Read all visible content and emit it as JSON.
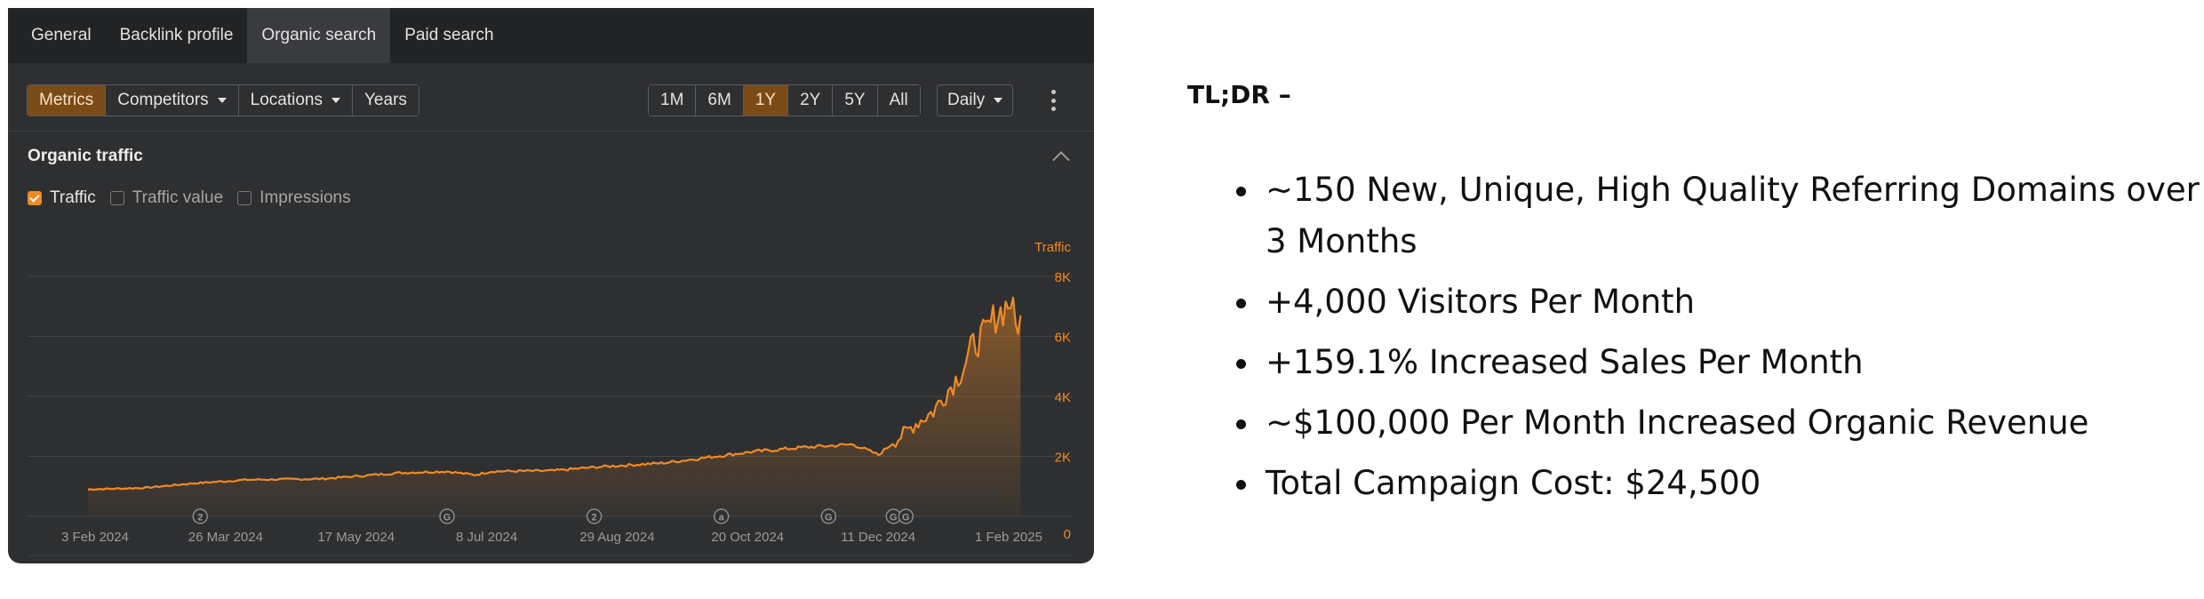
{
  "tabs": [
    "General",
    "Backlink profile",
    "Organic search",
    "Paid search"
  ],
  "toolbar": {
    "left_group": [
      {
        "label": "Metrics",
        "active": true,
        "caret": false
      },
      {
        "label": "Competitors",
        "active": false,
        "caret": true
      },
      {
        "label": "Locations",
        "active": false,
        "caret": true
      },
      {
        "label": "Years",
        "active": false,
        "caret": false
      }
    ],
    "ranges": [
      {
        "label": "1M",
        "active": false
      },
      {
        "label": "6M",
        "active": false
      },
      {
        "label": "1Y",
        "active": true
      },
      {
        "label": "2Y",
        "active": false
      },
      {
        "label": "5Y",
        "active": false
      },
      {
        "label": "All",
        "active": false
      }
    ],
    "interval": "Daily"
  },
  "section": {
    "title": "Organic traffic",
    "checkboxes": [
      {
        "label": "Traffic",
        "checked": true
      },
      {
        "label": "Traffic value",
        "checked": false
      },
      {
        "label": "Impressions",
        "checked": false
      }
    ]
  },
  "chart_data": {
    "type": "area",
    "series": [
      {
        "name": "Traffic",
        "color": "#f08a24"
      }
    ],
    "axis_title": "Traffic",
    "y_ticks": [
      "8K",
      "6K",
      "4K",
      "2K",
      "0"
    ],
    "ylim": [
      0,
      8000
    ],
    "x_tick_labels": [
      "3 Feb 2024",
      "26 Mar 2024",
      "17 May 2024",
      "8 Jul 2024",
      "29 Aug 2024",
      "20 Oct 2024",
      "11 Dec 2024",
      "1 Feb 2025"
    ],
    "x_start": "2024-01-28",
    "x_end": "2025-02-07",
    "points": [
      [
        "2024-01-28",
        900
      ],
      [
        "2024-02-20",
        950
      ],
      [
        "2024-03-10",
        1100
      ],
      [
        "2024-04-01",
        1220
      ],
      [
        "2024-05-01",
        1250
      ],
      [
        "2024-06-01",
        1450
      ],
      [
        "2024-06-20",
        1500
      ],
      [
        "2024-07-01",
        1380
      ],
      [
        "2024-07-08",
        1500
      ],
      [
        "2024-08-01",
        1520
      ],
      [
        "2024-08-20",
        1650
      ],
      [
        "2024-09-15",
        1780
      ],
      [
        "2024-10-01",
        1950
      ],
      [
        "2024-10-20",
        2150
      ],
      [
        "2024-11-10",
        2300
      ],
      [
        "2024-11-30",
        2400
      ],
      [
        "2024-12-10",
        2050
      ],
      [
        "2024-12-18",
        2600
      ],
      [
        "2024-12-25",
        3100
      ],
      [
        "2025-01-01",
        3500
      ],
      [
        "2025-01-06",
        4100
      ],
      [
        "2025-01-12",
        4800
      ],
      [
        "2025-01-17",
        5700
      ],
      [
        "2025-01-22",
        6100
      ],
      [
        "2025-01-26",
        6700
      ],
      [
        "2025-01-29",
        6900
      ],
      [
        "2025-02-01",
        7200
      ],
      [
        "2025-02-03",
        6300
      ],
      [
        "2025-02-05",
        6700
      ]
    ],
    "event_markers": [
      {
        "date": "2024-03-13",
        "label": "2"
      },
      {
        "date": "2024-06-20",
        "label": "G"
      },
      {
        "date": "2024-08-18",
        "label": "2"
      },
      {
        "date": "2024-10-08",
        "label": "a"
      },
      {
        "date": "2024-11-20",
        "label": "G"
      },
      {
        "date": "2024-12-16",
        "label": "G"
      },
      {
        "date": "2024-12-21",
        "label": "G"
      }
    ],
    "grid": true
  },
  "summary": {
    "heading": "TL;DR –",
    "points": [
      "~150 New, Unique, High Quality Referring Domains over 3 Months",
      "+4,000 Visitors Per Month",
      "+159.1% Increased Sales Per Month",
      "~$100,000 Per Month Increased Organic Revenue",
      "Total Campaign Cost: $24,500"
    ]
  }
}
